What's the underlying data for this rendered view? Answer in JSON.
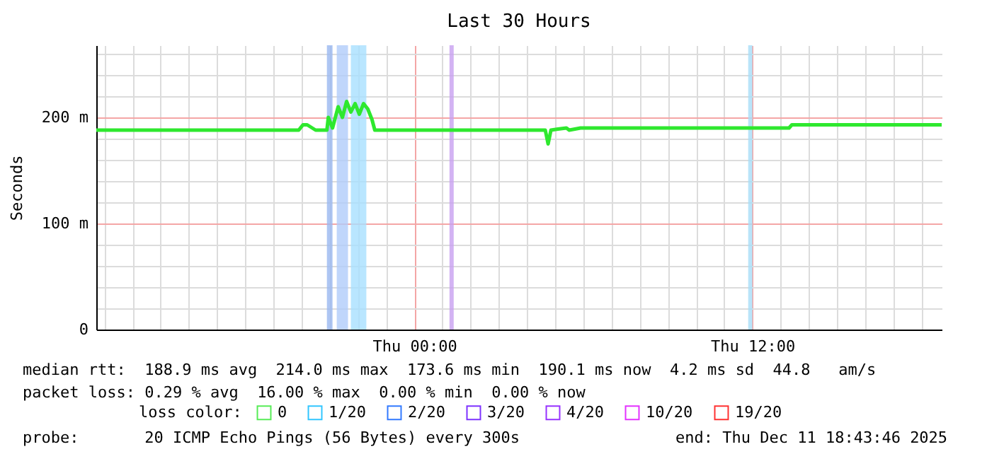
{
  "chart_data": {
    "type": "line",
    "title": "Last 30 Hours",
    "ylabel": "Seconds",
    "legend_title": "loss color:",
    "legend": "bottom",
    "xlim": [
      "2025-12-10T12:43",
      "2025-12-11T18:43"
    ],
    "xticks": [
      {
        "value": "2025-12-10T13:00",
        "label": null
      },
      {
        "value": "2025-12-10T14:00",
        "label": null
      },
      {
        "value": "2025-12-10T15:00",
        "label": null
      },
      {
        "value": "2025-12-10T16:00",
        "label": null
      },
      {
        "value": "2025-12-10T17:00",
        "label": null
      },
      {
        "value": "2025-12-10T18:00",
        "label": null
      },
      {
        "value": "2025-12-10T19:00",
        "label": null
      },
      {
        "value": "2025-12-10T20:00",
        "label": null
      },
      {
        "value": "2025-12-10T21:00",
        "label": null
      },
      {
        "value": "2025-12-10T22:00",
        "label": null
      },
      {
        "value": "2025-12-10T23:00",
        "label": null
      },
      {
        "value": "2025-12-11T00:00",
        "label": "Thu 00:00"
      },
      {
        "value": "2025-12-11T01:00",
        "label": null
      },
      {
        "value": "2025-12-11T02:00",
        "label": null
      },
      {
        "value": "2025-12-11T03:00",
        "label": null
      },
      {
        "value": "2025-12-11T04:00",
        "label": null
      },
      {
        "value": "2025-12-11T05:00",
        "label": null
      },
      {
        "value": "2025-12-11T06:00",
        "label": null
      },
      {
        "value": "2025-12-11T07:00",
        "label": null
      },
      {
        "value": "2025-12-11T08:00",
        "label": null
      },
      {
        "value": "2025-12-11T09:00",
        "label": null
      },
      {
        "value": "2025-12-11T10:00",
        "label": null
      },
      {
        "value": "2025-12-11T11:00",
        "label": null
      },
      {
        "value": "2025-12-11T12:00",
        "label": "Thu 12:00"
      },
      {
        "value": "2025-12-11T13:00",
        "label": null
      },
      {
        "value": "2025-12-11T14:00",
        "label": null
      },
      {
        "value": "2025-12-11T15:00",
        "label": null
      },
      {
        "value": "2025-12-11T16:00",
        "label": null
      },
      {
        "value": "2025-12-11T17:00",
        "label": null
      },
      {
        "value": "2025-12-11T18:00",
        "label": null
      }
    ],
    "ylim": [
      0,
      268
    ],
    "yticks": [
      0,
      {
        "value": 20,
        "label": null
      },
      {
        "value": 40,
        "label": null
      },
      {
        "value": 60,
        "label": null
      },
      {
        "value": 80,
        "label": null
      },
      {
        "value": 100,
        "label": "100 m"
      },
      {
        "value": 120,
        "label": null
      },
      {
        "value": 140,
        "label": null
      },
      {
        "value": 160,
        "label": null
      },
      {
        "value": 180,
        "label": null
      },
      {
        "value": 200,
        "label": "200 m"
      },
      {
        "value": 220,
        "label": null
      },
      {
        "value": 240,
        "label": null
      },
      {
        "value": 260,
        "label": null
      }
    ],
    "grid": true,
    "series": [
      {
        "name": "0",
        "color": "#2ee82e",
        "x": [
          "2025-12-10T12:43",
          "2025-12-10T19:54",
          "2025-12-10T20:03",
          "2025-12-10T20:12",
          "2025-12-10T20:30",
          "2025-12-10T20:54",
          "2025-12-10T20:57",
          "2025-12-10T21:06",
          "2025-12-10T21:18",
          "2025-12-10T21:27",
          "2025-12-10T21:36",
          "2025-12-10T21:45",
          "2025-12-10T21:54",
          "2025-12-10T22:03",
          "2025-12-10T22:12",
          "2025-12-10T22:21",
          "2025-12-10T22:30",
          "2025-12-10T22:36",
          "2025-12-11T04:39",
          "2025-12-11T04:45",
          "2025-12-11T04:51",
          "2025-12-11T05:06",
          "2025-12-11T05:24",
          "2025-12-11T05:30",
          "2025-12-11T05:54",
          "2025-12-11T12:00",
          "2025-12-11T13:18",
          "2025-12-11T13:24",
          "2025-12-11T18:43"
        ],
        "values": [
          188,
          188,
          193,
          193,
          188,
          188,
          200,
          190,
          210,
          200,
          215,
          205,
          213,
          203,
          213,
          208,
          198,
          188,
          188,
          175,
          188,
          189,
          190,
          188,
          190,
          190,
          190,
          193,
          193
        ]
      },
      {
        "name": "1/20",
        "color": "#00b8ff"
      },
      {
        "name": "2/20",
        "color": "#0059ff"
      },
      {
        "name": "3/20",
        "color": "#5e00ff"
      },
      {
        "name": "4/20",
        "color": "#7e00ff"
      },
      {
        "name": "10/20",
        "color": "#dd00ff"
      },
      {
        "name": "19/20",
        "color": "#ff0000"
      }
    ],
    "bands": [
      {
        "axis": "x",
        "from": "2025-12-10T20:54",
        "to": "2025-12-10T21:06",
        "color": "#9ab8f0"
      },
      {
        "axis": "x",
        "from": "2025-12-10T21:15",
        "to": "2025-12-10T21:39",
        "color": "#b0ccfa"
      },
      {
        "axis": "x",
        "from": "2025-12-10T21:45",
        "to": "2025-12-10T22:18",
        "color": "#a8e0ff"
      },
      {
        "axis": "x",
        "from": "2025-12-11T01:15",
        "to": "2025-12-11T01:24",
        "color": "#c8a0f0"
      },
      {
        "axis": "x",
        "from": "2025-12-11T11:51",
        "to": "2025-12-11T12:00",
        "color": "#a8ddf8"
      }
    ],
    "annotations": [
      "median rtt:  188.9 ms avg  214.0 ms max  173.6 ms min  190.1 ms now  4.2 ms sd  44.8   am/s",
      "packet loss: 0.29 % avg  16.00 % max  0.00 % min  0.00 % now",
      "probe:       20 ICMP Echo Pings (56 Bytes) every 300s",
      "end: Thu Dec 11 18:43:46 2025"
    ]
  }
}
